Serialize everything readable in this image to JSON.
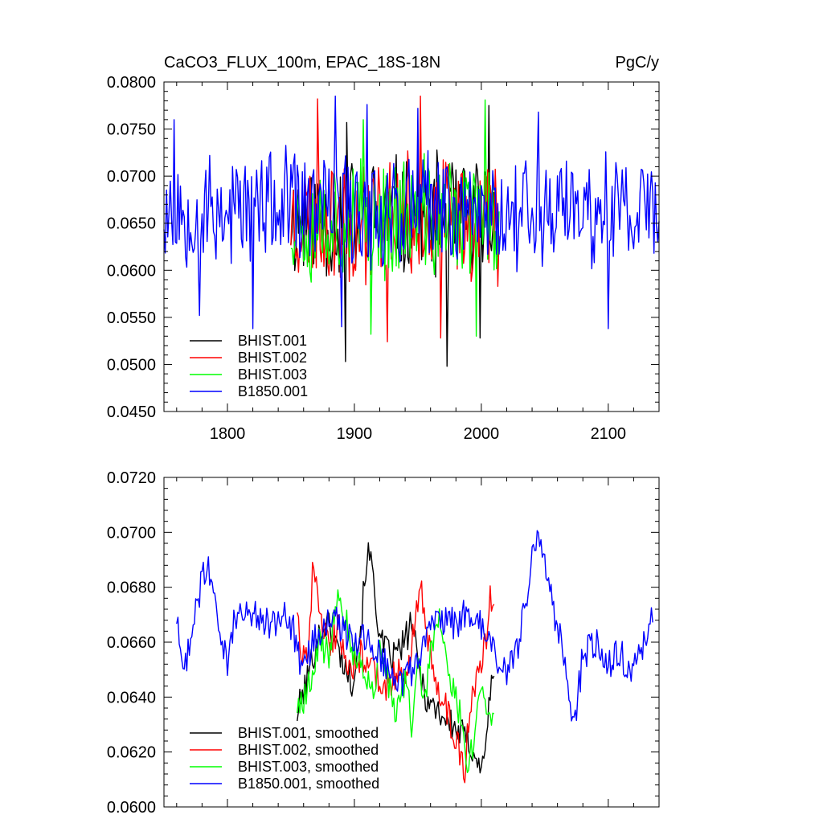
{
  "chart_data": [
    {
      "type": "line",
      "title": "CaCO3_FLUX_100m, EPAC_18S-18N",
      "units": "PgC/y",
      "xlabel": "",
      "ylabel": "",
      "xlim": [
        1750,
        2140
      ],
      "ylim": [
        0.045,
        0.08
      ],
      "x_ticks": [
        "1800",
        "1900",
        "2000",
        "2100"
      ],
      "y_ticks": [
        "0.0450",
        "0.0500",
        "0.0550",
        "0.0600",
        "0.0650",
        "0.0700",
        "0.0750",
        "0.0800"
      ],
      "legend_position": "bottom-left",
      "series": [
        {
          "name": "BHIST.001",
          "color": "#000000",
          "x_start": 1850,
          "x_end": 2014,
          "mean": 0.0655,
          "amp": 0.0075,
          "seed": 11,
          "anchors": [
            [
              1893,
              0.0503
            ],
            [
              1973,
              0.0498
            ],
            [
              1894,
              0.0757
            ],
            [
              2006,
              0.0775
            ],
            [
              1999,
              0.0528
            ]
          ]
        },
        {
          "name": "BHIST.002",
          "color": "#ff0000",
          "x_start": 1850,
          "x_end": 2014,
          "mean": 0.0655,
          "amp": 0.0075,
          "seed": 23,
          "anchors": [
            [
              1871,
              0.0782
            ],
            [
              1952,
              0.0785
            ],
            [
              1926,
              0.0524
            ],
            [
              1968,
              0.0528
            ]
          ]
        },
        {
          "name": "BHIST.003",
          "color": "#00ff00",
          "x_start": 1850,
          "x_end": 2014,
          "mean": 0.0655,
          "amp": 0.0075,
          "seed": 37,
          "anchors": [
            [
              2003,
              0.0781
            ],
            [
              1907,
              0.076
            ],
            [
              1913,
              0.0532
            ],
            [
              1996,
              0.053
            ]
          ]
        },
        {
          "name": "B1850.001",
          "color": "#0000ff",
          "x_start": 1750,
          "x_end": 2140,
          "mean": 0.0665,
          "amp": 0.007,
          "seed": 53,
          "anchors": [
            [
              1885,
              0.0785
            ],
            [
              1890,
              0.054
            ],
            [
              1820,
              0.0538
            ],
            [
              1950,
              0.0772
            ],
            [
              1910,
              0.0776
            ],
            [
              2045,
              0.0768
            ],
            [
              2100,
              0.0538
            ],
            [
              1778,
              0.0552
            ],
            [
              1758,
              0.076
            ]
          ]
        }
      ]
    },
    {
      "type": "line",
      "title": "",
      "xlabel": "",
      "ylabel": "",
      "xlim": [
        1750,
        2140
      ],
      "ylim": [
        0.06,
        0.072
      ],
      "y_ticks": [
        "0.0600",
        "0.0620",
        "0.0640",
        "0.0660",
        "0.0680",
        "0.0700",
        "0.0720"
      ],
      "legend_position": "bottom-left",
      "series": [
        {
          "name": "BHIST.001, smoothed",
          "color": "#000000",
          "x_start": 1855,
          "x_end": 2010,
          "seed": 101,
          "path": [
            [
              1855,
              0.0634
            ],
            [
              1862,
              0.0645
            ],
            [
              1870,
              0.066
            ],
            [
              1878,
              0.0668
            ],
            [
              1885,
              0.066
            ],
            [
              1892,
              0.0652
            ],
            [
              1898,
              0.0646
            ],
            [
              1905,
              0.0665
            ],
            [
              1910,
              0.0693
            ],
            [
              1915,
              0.0685
            ],
            [
              1920,
              0.066
            ],
            [
              1930,
              0.0654
            ],
            [
              1940,
              0.066
            ],
            [
              1945,
              0.0668
            ],
            [
              1950,
              0.0652
            ],
            [
              1958,
              0.0638
            ],
            [
              1965,
              0.0636
            ],
            [
              1972,
              0.0632
            ],
            [
              1980,
              0.0628
            ],
            [
              1988,
              0.0625
            ],
            [
              1995,
              0.062
            ],
            [
              2000,
              0.0612
            ],
            [
              2004,
              0.0628
            ],
            [
              2010,
              0.065
            ]
          ]
        },
        {
          "name": "BHIST.002, smoothed",
          "color": "#ff0000",
          "x_start": 1855,
          "x_end": 2010,
          "seed": 202,
          "path": [
            [
              1855,
              0.0673
            ],
            [
              1858,
              0.0658
            ],
            [
              1863,
              0.0655
            ],
            [
              1868,
              0.0691
            ],
            [
              1873,
              0.0668
            ],
            [
              1880,
              0.066
            ],
            [
              1888,
              0.0665
            ],
            [
              1896,
              0.065
            ],
            [
              1905,
              0.0655
            ],
            [
              1915,
              0.065
            ],
            [
              1925,
              0.0644
            ],
            [
              1935,
              0.065
            ],
            [
              1940,
              0.0642
            ],
            [
              1948,
              0.067
            ],
            [
              1953,
              0.068
            ],
            [
              1958,
              0.066
            ],
            [
              1965,
              0.0646
            ],
            [
              1972,
              0.0636
            ],
            [
              1980,
              0.0625
            ],
            [
              1987,
              0.0614
            ],
            [
              1992,
              0.064
            ],
            [
              1998,
              0.0652
            ],
            [
              2004,
              0.066
            ],
            [
              2007,
              0.0681
            ],
            [
              2010,
              0.0669
            ]
          ]
        },
        {
          "name": "BHIST.003, smoothed",
          "color": "#00ff00",
          "x_start": 1855,
          "x_end": 2010,
          "seed": 303,
          "path": [
            [
              1855,
              0.0636
            ],
            [
              1860,
              0.0638
            ],
            [
              1866,
              0.0646
            ],
            [
              1872,
              0.066
            ],
            [
              1880,
              0.0655
            ],
            [
              1887,
              0.0682
            ],
            [
              1893,
              0.0668
            ],
            [
              1900,
              0.0655
            ],
            [
              1908,
              0.065
            ],
            [
              1914,
              0.064
            ],
            [
              1920,
              0.0658
            ],
            [
              1925,
              0.065
            ],
            [
              1932,
              0.0632
            ],
            [
              1940,
              0.0646
            ],
            [
              1945,
              0.063
            ],
            [
              1950,
              0.065
            ],
            [
              1955,
              0.064
            ],
            [
              1962,
              0.066
            ],
            [
              1968,
              0.067
            ],
            [
              1973,
              0.0652
            ],
            [
              1978,
              0.0642
            ],
            [
              1985,
              0.063
            ],
            [
              1990,
              0.0615
            ],
            [
              1995,
              0.0625
            ],
            [
              2000,
              0.0645
            ],
            [
              2005,
              0.0635
            ],
            [
              2010,
              0.0634
            ]
          ]
        },
        {
          "name": "B1850.001, smoothed",
          "color": "#0000ff",
          "x_start": 1760,
          "x_end": 2135,
          "seed": 404,
          "path": [
            [
              1760,
              0.0668
            ],
            [
              1765,
              0.0648
            ],
            [
              1770,
              0.066
            ],
            [
              1775,
              0.0672
            ],
            [
              1780,
              0.0683
            ],
            [
              1785,
              0.0688
            ],
            [
              1790,
              0.0675
            ],
            [
              1795,
              0.066
            ],
            [
              1800,
              0.0652
            ],
            [
              1805,
              0.0668
            ],
            [
              1815,
              0.0672
            ],
            [
              1825,
              0.0668
            ],
            [
              1835,
              0.0666
            ],
            [
              1845,
              0.067
            ],
            [
              1852,
              0.0665
            ],
            [
              1858,
              0.065
            ],
            [
              1864,
              0.0655
            ],
            [
              1872,
              0.0664
            ],
            [
              1880,
              0.067
            ],
            [
              1890,
              0.0665
            ],
            [
              1900,
              0.0658
            ],
            [
              1910,
              0.0662
            ],
            [
              1920,
              0.0655
            ],
            [
              1930,
              0.065
            ],
            [
              1940,
              0.0645
            ],
            [
              1950,
              0.0655
            ],
            [
              1960,
              0.0665
            ],
            [
              1970,
              0.0668
            ],
            [
              1980,
              0.0667
            ],
            [
              1990,
              0.0672
            ],
            [
              2000,
              0.0665
            ],
            [
              2010,
              0.0655
            ],
            [
              2020,
              0.0648
            ],
            [
              2030,
              0.066
            ],
            [
              2040,
              0.069
            ],
            [
              2045,
              0.07
            ],
            [
              2050,
              0.0688
            ],
            [
              2058,
              0.067
            ],
            [
              2065,
              0.0655
            ],
            [
              2070,
              0.0635
            ],
            [
              2073,
              0.063
            ],
            [
              2080,
              0.0655
            ],
            [
              2090,
              0.066
            ],
            [
              2100,
              0.0652
            ],
            [
              2110,
              0.0658
            ],
            [
              2115,
              0.0648
            ],
            [
              2120,
              0.0652
            ],
            [
              2128,
              0.0658
            ],
            [
              2135,
              0.0672
            ]
          ]
        }
      ]
    }
  ]
}
